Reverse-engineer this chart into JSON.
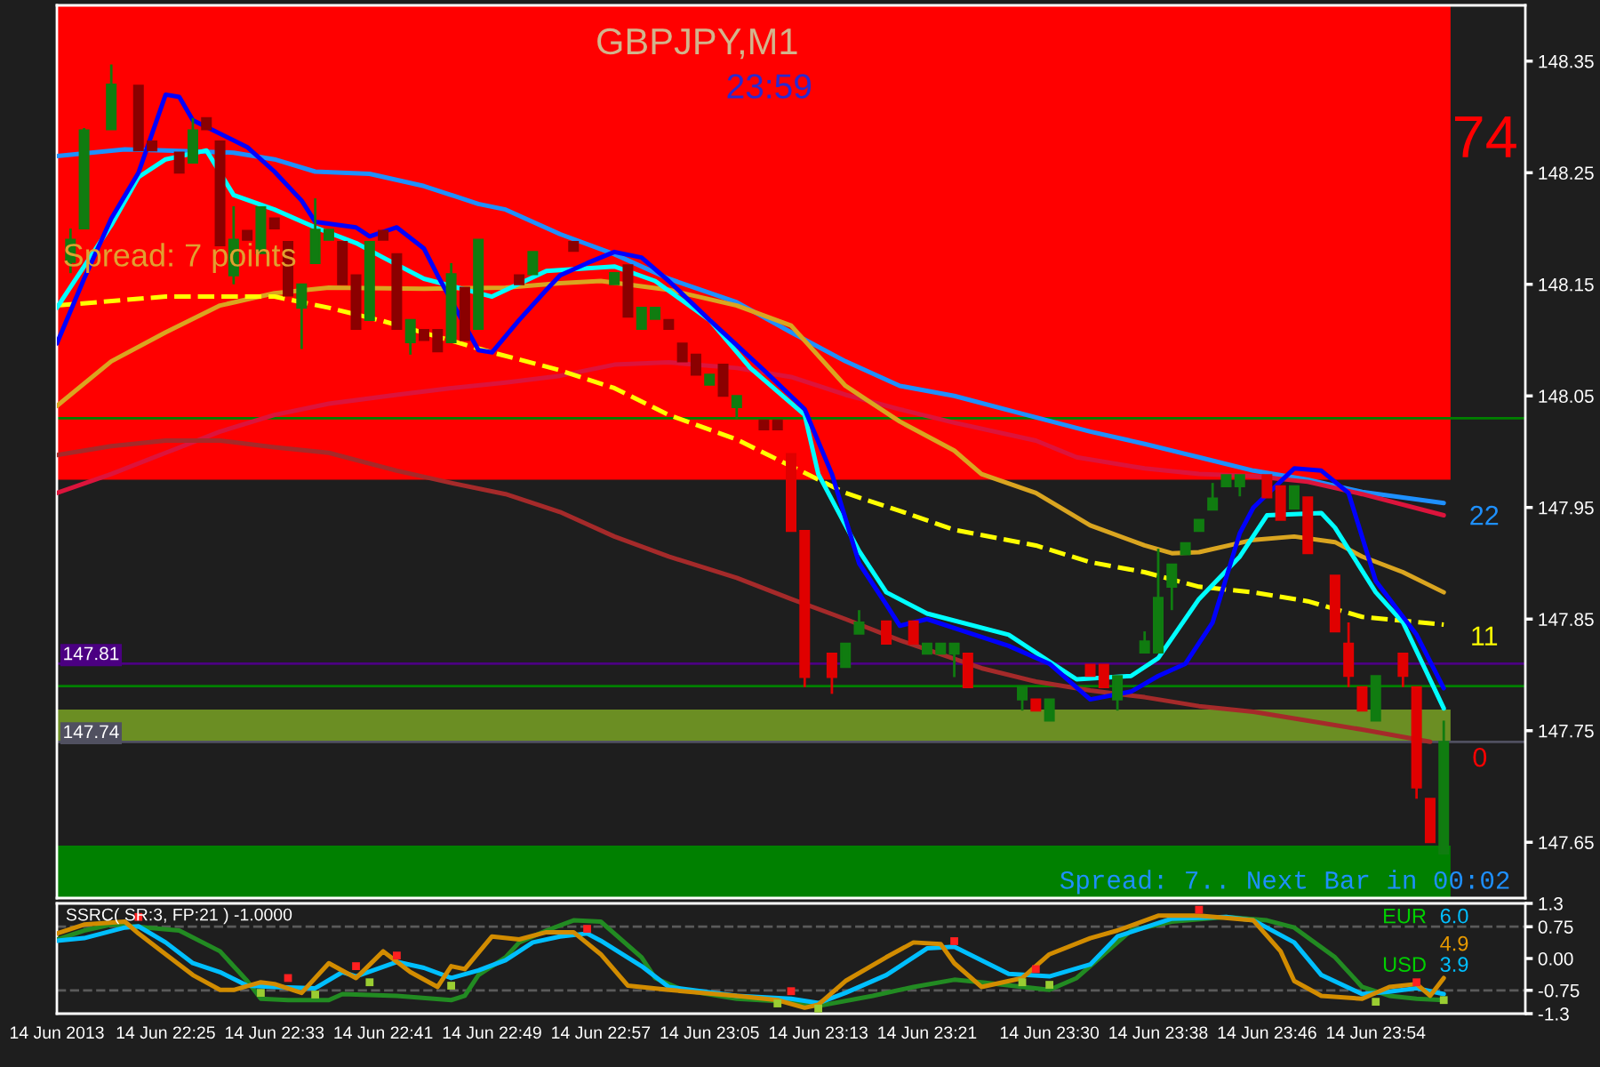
{
  "chart_data": [
    {
      "type": "candlestick",
      "title": "GBPJPY,M1",
      "subtitle": "23:59",
      "x": [
        "2013-06-14T22:18",
        "2013-06-14T22:19",
        "2013-06-14T22:21",
        "2013-06-14T22:23",
        "2013-06-14T22:24",
        "2013-06-14T22:26",
        "2013-06-14T22:27",
        "2013-06-14T22:28",
        "2013-06-14T22:29",
        "2013-06-14T22:30",
        "2013-06-14T22:31",
        "2013-06-14T22:32",
        "2013-06-14T22:33",
        "2013-06-14T22:34",
        "2013-06-14T22:35",
        "2013-06-14T22:36",
        "2013-06-14T22:37",
        "2013-06-14T22:38",
        "2013-06-14T22:39",
        "2013-06-14T22:40",
        "2013-06-14T22:41",
        "2013-06-14T22:42",
        "2013-06-14T22:43",
        "2013-06-14T22:44",
        "2013-06-14T22:45",
        "2013-06-14T22:46",
        "2013-06-14T22:47",
        "2013-06-14T22:48",
        "2013-06-14T22:51",
        "2013-06-14T22:52",
        "2013-06-14T22:55",
        "2013-06-14T22:58",
        "2013-06-14T22:59",
        "2013-06-14T23:00",
        "2013-06-14T23:01",
        "2013-06-14T23:02",
        "2013-06-14T23:03",
        "2013-06-14T23:04",
        "2013-06-14T23:05",
        "2013-06-14T23:06",
        "2013-06-14T23:07",
        "2013-06-14T23:09",
        "2013-06-14T23:10",
        "2013-06-14T23:11",
        "2013-06-14T23:12",
        "2013-06-14T23:14",
        "2013-06-14T23:15",
        "2013-06-14T23:16",
        "2013-06-14T23:18",
        "2013-06-14T23:20",
        "2013-06-14T23:21",
        "2013-06-14T23:22",
        "2013-06-14T23:23",
        "2013-06-14T23:24",
        "2013-06-14T23:28",
        "2013-06-14T23:29",
        "2013-06-14T23:30",
        "2013-06-14T23:33",
        "2013-06-14T23:34",
        "2013-06-14T23:35",
        "2013-06-14T23:37",
        "2013-06-14T23:38",
        "2013-06-14T23:39",
        "2013-06-14T23:40",
        "2013-06-14T23:41",
        "2013-06-14T23:42",
        "2013-06-14T23:43",
        "2013-06-14T23:44",
        "2013-06-14T23:46",
        "2013-06-14T23:47",
        "2013-06-14T23:48",
        "2013-06-14T23:49",
        "2013-06-14T23:51",
        "2013-06-14T23:52",
        "2013-06-14T23:53",
        "2013-06-14T23:54",
        "2013-06-14T23:56",
        "2013-06-14T23:57",
        "2013-06-14T23:58",
        "2013-06-14T23:59"
      ],
      "ohlc": [
        [
          148.17,
          148.2,
          148.16,
          148.19
        ],
        [
          148.2,
          148.29,
          148.2,
          148.288
        ],
        [
          148.289,
          148.347,
          148.289,
          148.329
        ],
        [
          148.328,
          148.328,
          148.27,
          148.27
        ],
        [
          148.278,
          148.278,
          148.27,
          148.27
        ],
        [
          148.268,
          148.268,
          148.25,
          148.25
        ],
        [
          148.259,
          148.299,
          148.259,
          148.288
        ],
        [
          148.299,
          148.299,
          148.289,
          148.289
        ],
        [
          148.278,
          148.278,
          148.185,
          148.185
        ],
        [
          148.158,
          148.22,
          148.15,
          148.19
        ],
        [
          148.198,
          148.198,
          148.19,
          148.19
        ],
        [
          148.178,
          148.219,
          148.178,
          148.219
        ],
        [
          148.209,
          148.209,
          148.2,
          148.2
        ],
        [
          148.188,
          148.188,
          148.14,
          148.14
        ],
        [
          148.129,
          148.15,
          148.092,
          148.15
        ],
        [
          148.169,
          148.227,
          148.169,
          148.199
        ],
        [
          148.19,
          148.199,
          148.19,
          148.199
        ],
        [
          148.188,
          148.188,
          148.15,
          148.15
        ],
        [
          148.158,
          148.158,
          148.11,
          148.11
        ],
        [
          148.118,
          148.188,
          148.118,
          148.188
        ],
        [
          148.198,
          148.198,
          148.19,
          148.19
        ],
        [
          148.177,
          148.177,
          148.11,
          148.11
        ],
        [
          148.098,
          148.118,
          148.087,
          148.118
        ],
        [
          148.109,
          148.109,
          148.1,
          148.1
        ],
        [
          148.109,
          148.109,
          148.09,
          148.09
        ],
        [
          148.098,
          148.169,
          148.098,
          148.159
        ],
        [
          148.147,
          148.147,
          148.1,
          148.1
        ],
        [
          148.11,
          148.19,
          148.11,
          148.19
        ],
        [
          148.158,
          148.158,
          148.15,
          148.15
        ],
        [
          148.159,
          148.179,
          148.159,
          148.179
        ],
        [
          148.188,
          148.188,
          148.18,
          148.18
        ],
        [
          148.15,
          148.16,
          148.15,
          148.16
        ],
        [
          148.167,
          148.167,
          148.121,
          148.121
        ],
        [
          148.11,
          148.129,
          148.11,
          148.129
        ],
        [
          148.119,
          148.129,
          148.119,
          148.129
        ],
        [
          148.118,
          148.118,
          148.11,
          148.11
        ],
        [
          148.097,
          148.097,
          148.081,
          148.081
        ],
        [
          148.087,
          148.087,
          148.069,
          148.069
        ],
        [
          148.06,
          148.069,
          148.06,
          148.069
        ],
        [
          148.078,
          148.078,
          148.05,
          148.05
        ],
        [
          148.04,
          148.05,
          148.029,
          148.05
        ],
        [
          148.028,
          148.028,
          148.02,
          148.02
        ],
        [
          148.028,
          148.028,
          148.02,
          148.02
        ],
        [
          147.998,
          147.998,
          147.929,
          147.929
        ],
        [
          147.929,
          147.929,
          147.789,
          147.798
        ],
        [
          147.819,
          147.819,
          147.783,
          147.798
        ],
        [
          147.807,
          147.828,
          147.807,
          147.828
        ],
        [
          147.837,
          147.858,
          147.837,
          147.847
        ],
        [
          147.848,
          147.848,
          147.828,
          147.828
        ],
        [
          147.848,
          147.848,
          147.828,
          147.828
        ],
        [
          147.819,
          147.828,
          147.819,
          147.828
        ],
        [
          147.819,
          147.828,
          147.819,
          147.828
        ],
        [
          147.819,
          147.828,
          147.798,
          147.828
        ],
        [
          147.819,
          147.819,
          147.789,
          147.789
        ],
        [
          147.778,
          147.789,
          147.768,
          147.789
        ],
        [
          147.778,
          147.778,
          147.768,
          147.768
        ],
        [
          147.759,
          147.778,
          147.759,
          147.778
        ],
        [
          147.809,
          147.809,
          147.799,
          147.799
        ],
        [
          147.809,
          147.809,
          147.789,
          147.789
        ],
        [
          147.778,
          147.799,
          147.768,
          147.799
        ],
        [
          147.82,
          147.839,
          147.82,
          147.83
        ],
        [
          147.82,
          147.913,
          147.82,
          147.869
        ],
        [
          147.879,
          147.899,
          147.858,
          147.899
        ],
        [
          147.908,
          147.918,
          147.908,
          147.918
        ],
        [
          147.929,
          147.939,
          147.929,
          147.939
        ],
        [
          147.948,
          147.972,
          147.948,
          147.958
        ],
        [
          147.969,
          147.979,
          147.969,
          147.979
        ],
        [
          147.969,
          147.979,
          147.96,
          147.979
        ],
        [
          147.979,
          147.979,
          147.959,
          147.959
        ],
        [
          147.969,
          147.969,
          147.939,
          147.939
        ],
        [
          147.949,
          147.969,
          147.949,
          147.969
        ],
        [
          147.959,
          147.959,
          147.909,
          147.909
        ],
        [
          147.889,
          147.889,
          147.839,
          147.839
        ],
        [
          147.828,
          147.847,
          147.789,
          147.799
        ],
        [
          147.789,
          147.789,
          147.768,
          147.768
        ],
        [
          147.759,
          147.799,
          147.759,
          147.799
        ],
        [
          147.819,
          147.819,
          147.789,
          147.799
        ],
        [
          147.789,
          147.789,
          147.689,
          147.699
        ],
        [
          147.689,
          147.689,
          147.65,
          147.65
        ],
        [
          147.64,
          147.759,
          147.64,
          147.74
        ]
      ],
      "colors": [
        "#107c10",
        "#107c10",
        "#107c10",
        "#8b0000",
        "#8b0000",
        "#8b0000",
        "#107c10",
        "#8b0000",
        "#8b0000",
        "#107c10",
        "#8b0000",
        "#107c10",
        "#8b0000",
        "#8b0000",
        "#107c10",
        "#107c10",
        "#107c10",
        "#8b0000",
        "#8b0000",
        "#107c10",
        "#8b0000",
        "#8b0000",
        "#107c10",
        "#8b0000",
        "#8b0000",
        "#107c10",
        "#8b0000",
        "#107c10",
        "#8b0000",
        "#107c10",
        "#8b0000",
        "#107c10",
        "#8b0000",
        "#107c10",
        "#107c10",
        "#8b0000",
        "#8b0000",
        "#8b0000",
        "#107c10",
        "#8b0000",
        "#107c10",
        "#8b0000",
        "#8b0000",
        "#e00000",
        "#e00000",
        "#e00000",
        "#107c10",
        "#107c10",
        "#e00000",
        "#e00000",
        "#107c10",
        "#107c10",
        "#107c10",
        "#e00000",
        "#107c10",
        "#e00000",
        "#107c10",
        "#e00000",
        "#e00000",
        "#107c10",
        "#107c10",
        "#107c10",
        "#107c10",
        "#107c10",
        "#107c10",
        "#107c10",
        "#107c10",
        "#107c10",
        "#e00000",
        "#e00000",
        "#107c10",
        "#e00000",
        "#e00000",
        "#e00000",
        "#e00000",
        "#107c10",
        "#e00000",
        "#e00000",
        "#e00000",
        "#107c10"
      ],
      "series": [
        {
          "type": "line",
          "color": "#1e90ff",
          "x": [
            "2013-06-14T22:17",
            "2013-06-14T22:22",
            "2013-06-14T22:25",
            "2013-06-14T22:30",
            "2013-06-14T22:33",
            "2013-06-14T22:36",
            "2013-06-14T22:40",
            "2013-06-14T22:44",
            "2013-06-14T22:48",
            "2013-06-14T22:50",
            "2013-06-14T22:54",
            "2013-06-14T22:58",
            "2013-06-14T23:02",
            "2013-06-14T23:07",
            "2013-06-14T23:11",
            "2013-06-14T23:15",
            "2013-06-14T23:19",
            "2013-06-14T23:23",
            "2013-06-14T23:28",
            "2013-06-14T23:33",
            "2013-06-14T23:37",
            "2013-06-14T23:41",
            "2013-06-14T23:45",
            "2013-06-14T23:49",
            "2013-06-14T23:53",
            "2013-06-14T23:59"
          ],
          "values": [
            148.265,
            148.271,
            148.27,
            148.268,
            148.262,
            148.251,
            148.249,
            148.238,
            148.222,
            148.217,
            148.195,
            148.177,
            148.155,
            148.134,
            148.107,
            148.081,
            148.059,
            148.05,
            148.034,
            148.018,
            148.007,
            147.995,
            147.983,
            147.975,
            147.964,
            147.954
          ]
        },
        {
          "type": "line",
          "color": "#dc143c",
          "x": [
            "2013-06-14T22:17",
            "2013-06-14T22:21",
            "2013-06-14T22:25",
            "2013-06-14T22:29",
            "2013-06-14T22:33",
            "2013-06-14T22:37",
            "2013-06-14T22:42",
            "2013-06-14T22:46",
            "2013-06-14T22:50",
            "2013-06-14T22:54",
            "2013-06-14T22:58",
            "2013-06-14T23:02",
            "2013-06-14T23:07",
            "2013-06-14T23:11",
            "2013-06-14T23:15",
            "2013-06-14T23:19",
            "2013-06-14T23:23",
            "2013-06-14T23:29",
            "2013-06-14T23:32",
            "2013-06-14T23:37",
            "2013-06-14T23:41",
            "2013-06-14T23:45",
            "2013-06-14T23:49",
            "2013-06-14T23:53",
            "2013-06-14T23:59"
          ],
          "values": [
            147.963,
            147.98,
            147.999,
            148.018,
            148.033,
            148.043,
            148.051,
            148.057,
            148.062,
            148.068,
            148.078,
            148.08,
            148.075,
            148.067,
            148.051,
            148.038,
            148.026,
            148.01,
            147.995,
            147.985,
            147.98,
            147.978,
            147.973,
            147.962,
            147.943
          ]
        },
        {
          "type": "line",
          "color": "#a52a2a",
          "x": [
            "2013-06-14T22:17",
            "2013-06-14T22:21",
            "2013-06-14T22:25",
            "2013-06-14T22:29",
            "2013-06-14T22:33",
            "2013-06-14T22:37",
            "2013-06-14T22:42",
            "2013-06-14T22:46",
            "2013-06-14T22:50",
            "2013-06-14T22:54",
            "2013-06-14T22:58",
            "2013-06-14T23:02",
            "2013-06-14T23:07",
            "2013-06-14T23:11",
            "2013-06-14T23:15",
            "2013-06-14T23:19",
            "2013-06-14T23:25",
            "2013-06-14T23:29",
            "2013-06-14T23:33",
            "2013-06-14T23:37",
            "2013-06-14T23:41",
            "2013-06-14T23:45",
            "2013-06-14T23:49",
            "2013-06-14T23:53",
            "2013-06-14T23:58"
          ],
          "values": [
            147.997,
            148.005,
            148.01,
            148.01,
            148.004,
            147.999,
            147.983,
            147.972,
            147.962,
            147.946,
            147.924,
            147.906,
            147.887,
            147.868,
            147.85,
            147.831,
            147.806,
            147.794,
            147.786,
            147.78,
            147.772,
            147.767,
            147.759,
            147.751,
            147.74
          ]
        },
        {
          "type": "line",
          "color": "#daa520",
          "x": [
            "2013-06-14T22:17",
            "2013-06-14T22:21",
            "2013-06-14T22:25",
            "2013-06-14T22:29",
            "2013-06-14T22:33",
            "2013-06-14T22:37",
            "2013-06-14T22:44",
            "2013-06-14T22:50",
            "2013-06-14T22:54",
            "2013-06-14T22:57",
            "2013-06-14T23:02",
            "2013-06-14T23:07",
            "2013-06-14T23:11",
            "2013-06-14T23:13",
            "2013-06-14T23:15",
            "2013-06-14T23:17",
            "2013-06-14T23:19",
            "2013-06-14T23:23",
            "2013-06-14T23:25",
            "2013-06-14T23:29",
            "2013-06-14T23:33",
            "2013-06-14T23:37",
            "2013-06-14T23:39",
            "2013-06-14T23:41",
            "2013-06-14T23:45",
            "2013-06-14T23:48",
            "2013-06-14T23:51",
            "2013-06-14T23:53",
            "2013-06-14T23:56",
            "2013-06-14T23:59"
          ],
          "values": [
            148.041,
            148.081,
            148.107,
            148.131,
            148.142,
            148.147,
            148.146,
            148.147,
            148.151,
            148.153,
            148.145,
            148.131,
            148.113,
            148.086,
            148.059,
            148.043,
            148.027,
            148.001,
            147.98,
            147.963,
            147.934,
            147.916,
            147.909,
            147.91,
            147.921,
            147.924,
            147.919,
            147.906,
            147.892,
            147.874
          ]
        },
        {
          "type": "line",
          "color": "#ffff00",
          "line_style": "dashed",
          "x": [
            "2013-06-14T22:17",
            "2013-06-14T22:25",
            "2013-06-14T22:33",
            "2013-06-14T22:37",
            "2013-06-14T22:41",
            "2013-06-14T22:49",
            "2013-06-14T22:54",
            "2013-06-14T22:58",
            "2013-06-14T23:02",
            "2013-06-14T23:07",
            "2013-06-14T23:13",
            "2013-06-14T23:15",
            "2013-06-14T23:19",
            "2013-06-14T23:23",
            "2013-06-14T23:29",
            "2013-06-14T23:33",
            "2013-06-14T23:37",
            "2013-06-14T23:41",
            "2013-06-14T23:45",
            "2013-06-14T23:49",
            "2013-06-14T23:53",
            "2013-06-14T23:59"
          ],
          "values": [
            148.131,
            148.139,
            148.139,
            148.129,
            148.117,
            148.089,
            148.073,
            148.057,
            148.033,
            148.011,
            147.975,
            147.963,
            147.947,
            147.93,
            147.916,
            147.901,
            147.892,
            147.879,
            147.874,
            147.866,
            147.852,
            147.845
          ]
        },
        {
          "type": "line",
          "color": "#00ffff",
          "x": [
            "2013-06-14T22:17",
            "2013-06-14T22:21",
            "2013-06-14T22:23",
            "2013-06-14T22:25",
            "2013-06-14T22:28",
            "2013-06-14T22:30",
            "2013-06-14T22:33",
            "2013-06-14T22:36",
            "2013-06-14T22:39",
            "2013-06-14T22:41",
            "2013-06-14T22:44",
            "2013-06-14T22:49",
            "2013-06-14T22:53",
            "2013-06-14T22:58",
            "2013-06-14T23:01",
            "2013-06-14T23:05",
            "2013-06-14T23:08",
            "2013-06-14T23:12",
            "2013-06-14T23:13",
            "2013-06-14T23:16",
            "2013-06-14T23:18",
            "2013-06-14T23:21",
            "2013-06-14T23:27",
            "2013-06-14T23:31",
            "2013-06-14T23:32",
            "2013-06-14T23:36",
            "2013-06-14T23:38",
            "2013-06-14T23:41",
            "2013-06-14T23:44",
            "2013-06-14T23:46",
            "2013-06-14T23:50",
            "2013-06-14T23:51",
            "2013-06-14T23:54",
            "2013-06-14T23:56",
            "2013-06-14T23:59"
          ],
          "values": [
            148.129,
            148.203,
            148.246,
            148.262,
            148.27,
            148.23,
            148.217,
            148.201,
            148.187,
            148.174,
            148.155,
            148.139,
            148.162,
            148.166,
            148.153,
            148.118,
            148.075,
            148.033,
            147.98,
            147.911,
            147.874,
            147.855,
            147.836,
            147.804,
            147.796,
            147.799,
            147.815,
            147.868,
            147.906,
            147.943,
            147.945,
            147.932,
            147.874,
            147.847,
            147.77
          ]
        },
        {
          "type": "line",
          "color": "#0000ff",
          "x": [
            "2013-06-14T22:17",
            "2013-06-14T22:19",
            "2013-06-14T22:21",
            "2013-06-14T22:23",
            "2013-06-14T22:25",
            "2013-06-14T22:26",
            "2013-06-14T22:27",
            "2013-06-14T22:31",
            "2013-06-14T22:33",
            "2013-06-14T22:35",
            "2013-06-14T22:36",
            "2013-06-14T22:39",
            "2013-06-14T22:40",
            "2013-06-14T22:42",
            "2013-06-14T22:44",
            "2013-06-14T22:45",
            "2013-06-14T22:48",
            "2013-06-14T22:49",
            "2013-06-14T22:51",
            "2013-06-14T22:53",
            "2013-06-14T22:54",
            "2013-06-14T22:56",
            "2013-06-14T22:58",
            "2013-06-14T23:00",
            "2013-06-14T23:02",
            "2013-06-14T23:05",
            "2013-06-14T23:09",
            "2013-06-14T23:12",
            "2013-06-14T23:14",
            "2013-06-14T23:16",
            "2013-06-14T23:18",
            "2013-06-14T23:19",
            "2013-06-14T23:21",
            "2013-06-14T23:23",
            "2013-06-14T23:27",
            "2013-06-14T23:30",
            "2013-06-14T23:33",
            "2013-06-14T23:36",
            "2013-06-14T23:38",
            "2013-06-14T23:40",
            "2013-06-14T23:42",
            "2013-06-14T23:44",
            "2013-06-14T23:45",
            "2013-06-14T23:48",
            "2013-06-14T23:50",
            "2013-06-14T23:52",
            "2013-06-14T23:54",
            "2013-06-14T23:57",
            "2013-06-14T23:59"
          ],
          "values": [
            148.097,
            148.155,
            148.209,
            148.25,
            148.32,
            148.318,
            148.297,
            148.273,
            148.251,
            148.225,
            148.206,
            148.201,
            148.193,
            148.201,
            148.182,
            148.158,
            148.091,
            148.089,
            148.118,
            148.145,
            148.158,
            148.169,
            148.179,
            148.174,
            148.153,
            148.118,
            148.073,
            148.038,
            147.98,
            147.9,
            147.863,
            147.844,
            147.85,
            147.842,
            147.826,
            147.81,
            147.778,
            147.785,
            147.799,
            147.81,
            147.847,
            147.927,
            147.95,
            147.985,
            147.983,
            147.963,
            147.884,
            147.836,
            147.788
          ]
        }
      ],
      "xlim": [
        "2013-06-14T22:17",
        "2013-06-15T00:05"
      ],
      "ylim": [
        147.6,
        148.4
      ],
      "yticks": [
        148.35,
        148.25,
        148.15,
        148.05,
        147.95,
        147.85,
        147.75,
        147.65
      ],
      "tick_labels": "y",
      "bands": [
        {
          "axis": "y",
          "from": 147.975,
          "to": 148.4,
          "color": "#ff0000"
        },
        {
          "axis": "y",
          "from": 147.74,
          "to": 147.769,
          "color": "#6b8e23"
        },
        {
          "axis": "y",
          "from": 147.6,
          "to": 147.647,
          "color": "#008000"
        }
      ],
      "ref_lines": [
        {
          "axis": "y",
          "value": 148.03,
          "color": "#008000"
        },
        {
          "axis": "y",
          "value": 147.79,
          "color": "#008000"
        },
        {
          "axis": "y",
          "value": 147.81,
          "label": "147.81",
          "color": "#4b0082"
        },
        {
          "axis": "y",
          "value": 147.74,
          "label": "147.74",
          "color": "#505060"
        }
      ],
      "annotations": [
        "Spread: 7 points",
        "74",
        "22",
        "11",
        "0",
        "Spread: 7.. Next Bar in 00:02"
      ]
    },
    {
      "type": "line",
      "title": "SSRC( SR:3, FP:21 ) -1.0000",
      "series": [
        {
          "type": "line",
          "color": "#228b22",
          "x": [
            "2013-06-14T22:17",
            "2013-06-14T22:19",
            "2013-06-14T22:21",
            "2013-06-14T22:26",
            "2013-06-14T22:29",
            "2013-06-14T22:31",
            "2013-06-14T22:32",
            "2013-06-14T22:34",
            "2013-06-14T22:37",
            "2013-06-14T22:38",
            "2013-06-14T22:42",
            "2013-06-14T22:46",
            "2013-06-14T22:47",
            "2013-06-14T22:48",
            "2013-06-14T22:50",
            "2013-06-14T22:51",
            "2013-06-14T22:53",
            "2013-06-14T22:55",
            "2013-06-14T22:57",
            "2013-06-14T22:58",
            "2013-06-14T23:00",
            "2013-06-14T23:01",
            "2013-06-14T23:03",
            "2013-06-14T23:07",
            "2013-06-14T23:11",
            "2013-06-14T23:13",
            "2013-06-14T23:17",
            "2013-06-14T23:20",
            "2013-06-14T23:23",
            "2013-06-14T23:25",
            "2013-06-14T23:30",
            "2013-06-14T23:32",
            "2013-06-14T23:34",
            "2013-06-14T23:36",
            "2013-06-14T23:39",
            "2013-06-14T23:43",
            "2013-06-14T23:46",
            "2013-06-14T23:48",
            "2013-06-14T23:51",
            "2013-06-14T23:53",
            "2013-06-14T23:55",
            "2013-06-14T23:57",
            "2013-06-14T23:59"
          ],
          "values": [
            0.45,
            0.66,
            0.8,
            0.66,
            0.17,
            -0.53,
            -0.95,
            -0.98,
            -0.98,
            -0.84,
            -0.88,
            -0.98,
            -0.88,
            -0.39,
            0.03,
            0.38,
            0.66,
            0.9,
            0.87,
            0.59,
            0.03,
            -0.46,
            -0.74,
            -0.95,
            -1.02,
            -1.12,
            -0.88,
            -0.67,
            -0.5,
            -0.56,
            -0.74,
            -0.46,
            0.1,
            0.66,
            0.87,
            0.98,
            0.9,
            0.73,
            0.03,
            -0.67,
            -0.88,
            -0.95,
            -0.98
          ]
        },
        {
          "type": "line",
          "color": "#00bfff",
          "x": [
            "2013-06-14T22:17",
            "2013-06-14T22:19",
            "2013-06-14T22:22",
            "2013-06-14T22:23",
            "2013-06-14T22:25",
            "2013-06-14T22:27",
            "2013-06-14T22:29",
            "2013-06-14T22:31",
            "2013-06-14T22:33",
            "2013-06-14T22:36",
            "2013-06-14T22:38",
            "2013-06-14T22:39",
            "2013-06-14T22:42",
            "2013-06-14T22:44",
            "2013-06-14T22:46",
            "2013-06-14T22:48",
            "2013-06-14T22:50",
            "2013-06-14T22:52",
            "2013-06-14T22:54",
            "2013-06-14T22:56",
            "2013-06-14T22:57",
            "2013-06-14T23:00",
            "2013-06-14T23:02",
            "2013-06-14T23:07",
            "2013-06-14T23:11",
            "2013-06-14T23:13",
            "2013-06-14T23:15",
            "2013-06-14T23:18",
            "2013-06-14T23:21",
            "2013-06-14T23:23",
            "2013-06-14T23:27",
            "2013-06-14T23:30",
            "2013-06-14T23:33",
            "2013-06-14T23:35",
            "2013-06-14T23:39",
            "2013-06-14T23:43",
            "2013-06-14T23:45",
            "2013-06-14T23:48",
            "2013-06-14T23:50",
            "2013-06-14T23:53",
            "2013-06-14T23:55",
            "2013-06-14T23:57",
            "2013-06-14T23:59"
          ],
          "values": [
            0.42,
            0.48,
            0.73,
            0.76,
            0.38,
            -0.11,
            -0.32,
            -0.64,
            -0.67,
            -0.7,
            -0.32,
            -0.42,
            -0.08,
            -0.22,
            -0.46,
            -0.28,
            -0.04,
            0.38,
            0.52,
            0.59,
            0.42,
            -0.18,
            -0.67,
            -0.88,
            -0.95,
            -1.05,
            -0.81,
            -0.39,
            0.24,
            0.28,
            -0.36,
            -0.42,
            -0.14,
            0.52,
            0.94,
            0.98,
            0.9,
            0.38,
            -0.39,
            -0.84,
            -0.78,
            -0.7,
            -0.84
          ]
        },
        {
          "type": "line",
          "color": "#d28c00",
          "x": [
            "2013-06-14T22:17",
            "2013-06-14T22:19",
            "2013-06-14T22:22",
            "2013-06-14T22:23",
            "2013-06-14T22:25",
            "2013-06-14T22:27",
            "2013-06-14T22:29",
            "2013-06-14T22:30",
            "2013-06-14T22:32",
            "2013-06-14T22:33",
            "2013-06-14T22:35",
            "2013-06-14T22:37",
            "2013-06-14T22:39",
            "2013-06-14T22:41",
            "2013-06-14T22:43",
            "2013-06-14T22:45",
            "2013-06-14T22:46",
            "2013-06-14T22:47",
            "2013-06-14T22:49",
            "2013-06-14T22:51",
            "2013-06-14T22:53",
            "2013-06-14T22:55",
            "2013-06-14T22:57",
            "2013-06-14T22:59",
            "2013-06-14T23:02",
            "2013-06-14T23:07",
            "2013-06-14T23:10",
            "2013-06-14T23:12",
            "2013-06-14T23:13",
            "2013-06-14T23:15",
            "2013-06-14T23:18",
            "2013-06-14T23:20",
            "2013-06-14T23:22",
            "2013-06-14T23:23",
            "2013-06-14T23:25",
            "2013-06-14T23:28",
            "2013-06-14T23:30",
            "2013-06-14T23:33",
            "2013-06-14T23:35",
            "2013-06-14T23:38",
            "2013-06-14T23:41",
            "2013-06-14T23:45",
            "2013-06-14T23:47",
            "2013-06-14T23:48",
            "2013-06-14T23:50",
            "2013-06-14T23:53",
            "2013-06-14T23:55",
            "2013-06-14T23:57",
            "2013-06-14T23:58",
            "2013-06-14T23:59"
          ],
          "values": [
            0.59,
            0.8,
            0.87,
            0.59,
            0.1,
            -0.39,
            -0.74,
            -0.74,
            -0.56,
            -0.6,
            -0.81,
            -0.11,
            -0.46,
            0.17,
            -0.32,
            -0.67,
            -0.18,
            -0.25,
            0.52,
            0.45,
            0.62,
            0.62,
            0.1,
            -0.64,
            -0.74,
            -0.88,
            -0.98,
            -1.16,
            -1.09,
            -0.53,
            0.03,
            0.38,
            0.34,
            -0.11,
            -0.67,
            -0.46,
            0.1,
            0.48,
            0.66,
            1.01,
            1.01,
            0.9,
            0.17,
            -0.53,
            -0.88,
            -0.95,
            -0.67,
            -0.6,
            -0.88,
            -0.46
          ]
        },
        {
          "type": "scatter",
          "marker": "square",
          "color": "#ff2020",
          "x": [
            "2013-06-14T22:23",
            "2013-06-14T22:34",
            "2013-06-14T22:39",
            "2013-06-14T22:42",
            "2013-06-14T22:56",
            "2013-06-14T23:11",
            "2013-06-14T23:23",
            "2013-06-14T23:29",
            "2013-06-14T23:41",
            "2013-06-14T23:57"
          ],
          "values": [
            0.98,
            -0.46,
            -0.18,
            0.07,
            0.7,
            -0.77,
            0.41,
            -0.25,
            1.15,
            -0.56
          ]
        },
        {
          "type": "scatter",
          "marker": "square",
          "color": "#9acd32",
          "x": [
            "2013-06-14T22:32",
            "2013-06-14T22:36",
            "2013-06-14T22:40",
            "2013-06-14T22:46",
            "2013-06-14T23:10",
            "2013-06-14T23:13",
            "2013-06-14T23:28",
            "2013-06-14T23:30",
            "2013-06-14T23:54",
            "2013-06-14T23:59"
          ],
          "values": [
            -0.81,
            -0.85,
            -0.56,
            -0.64,
            -1.06,
            -1.18,
            -0.56,
            -0.62,
            -1.02,
            -0.98
          ]
        }
      ],
      "xlim": [
        "2013-06-14T22:17",
        "2013-06-15T00:05"
      ],
      "xticks": [
        {
          "value": "2013-06-14T22:17",
          "label": "14 Jun 2013"
        },
        {
          "value": "2013-06-14T22:25",
          "label": "14 Jun 22:25"
        },
        {
          "value": "2013-06-14T22:33",
          "label": "14 Jun 22:33"
        },
        {
          "value": "2013-06-14T22:41",
          "label": "14 Jun 22:41"
        },
        {
          "value": "2013-06-14T22:49",
          "label": "14 Jun 22:49"
        },
        {
          "value": "2013-06-14T22:57",
          "label": "14 Jun 22:57"
        },
        {
          "value": "2013-06-14T23:05",
          "label": "14 Jun 23:05"
        },
        {
          "value": "2013-06-14T23:13",
          "label": "14 Jun 23:13"
        },
        {
          "value": "2013-06-14T23:21",
          "label": "14 Jun 23:21"
        },
        {
          "value": "2013-06-14T23:30",
          "label": "14 Jun 23:30"
        },
        {
          "value": "2013-06-14T23:38",
          "label": "14 Jun 23:38"
        },
        {
          "value": "2013-06-14T23:46",
          "label": "14 Jun 23:46"
        },
        {
          "value": "2013-06-14T23:54",
          "label": "14 Jun 23:54"
        }
      ],
      "ylim": [
        -1.3,
        1.3
      ],
      "yticks": [
        1.3,
        0.75,
        {
          "value": 0,
          "label": "0.00"
        },
        -0.75,
        -1.3
      ],
      "ref_lines": [
        {
          "axis": "y",
          "value": 0.75,
          "line_style": "dashed",
          "color": "#5a5a5a"
        },
        {
          "axis": "y",
          "value": -0.75,
          "line_style": "dashed",
          "color": "#5a5a5a"
        }
      ],
      "annotations": [
        "EUR",
        "6.0",
        "4.9",
        "USD",
        "3.9"
      ]
    }
  ]
}
